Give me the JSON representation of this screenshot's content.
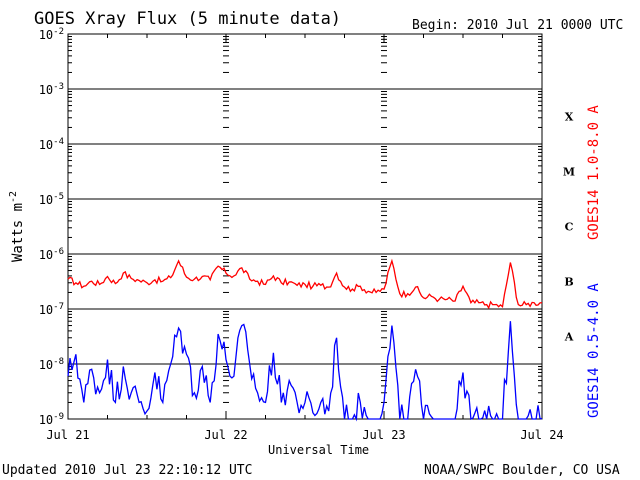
{
  "chart_data": {
    "type": "line",
    "title": "GOES Xray Flux (5 minute data)",
    "begin_label": "Begin:  2010 Jul 21 0000 UTC",
    "xlabel": "Universal Time",
    "ylabel": "Watts m",
    "ylabel_sup": "-2",
    "x_ticks": [
      "Jul 21",
      "Jul 22",
      "Jul 23",
      "Jul 24"
    ],
    "x_range_days": [
      0,
      3
    ],
    "y_scale": "log",
    "ylim": [
      1e-09,
      0.01
    ],
    "y_ticks": [
      {
        "base": "10",
        "exp": "-2"
      },
      {
        "base": "10",
        "exp": "-3"
      },
      {
        "base": "10",
        "exp": "-4"
      },
      {
        "base": "10",
        "exp": "-5"
      },
      {
        "base": "10",
        "exp": "-6"
      },
      {
        "base": "10",
        "exp": "-7"
      },
      {
        "base": "10",
        "exp": "-8"
      },
      {
        "base": "10",
        "exp": "-9"
      }
    ],
    "flare_classes": [
      "X",
      "M",
      "C",
      "B",
      "A"
    ],
    "grid": "horizontal at each decade",
    "series": [
      {
        "name": "GOES14 1.0-8.0 A",
        "color": "#ff0000",
        "x_days": [
          0.0,
          0.05,
          0.1,
          0.15,
          0.2,
          0.25,
          0.3,
          0.35,
          0.4,
          0.45,
          0.5,
          0.55,
          0.6,
          0.65,
          0.7,
          0.75,
          0.8,
          0.85,
          0.9,
          0.95,
          1.0,
          1.05,
          1.1,
          1.15,
          1.2,
          1.25,
          1.3,
          1.35,
          1.4,
          1.45,
          1.5,
          1.55,
          1.6,
          1.65,
          1.7,
          1.75,
          1.8,
          1.85,
          1.9,
          1.95,
          2.0,
          2.05,
          2.1,
          2.15,
          2.2,
          2.25,
          2.3,
          2.35,
          2.4,
          2.45,
          2.5,
          2.55,
          2.6,
          2.65,
          2.7,
          2.75,
          2.8,
          2.85,
          2.9,
          2.95,
          3.0
        ],
        "y": [
          3.5e-07,
          3e-07,
          2.6e-07,
          3.2e-07,
          2.8e-07,
          3.9e-07,
          2.9e-07,
          4.5e-07,
          3.6e-07,
          3.3e-07,
          3e-07,
          3.4e-07,
          3.2e-07,
          3.7e-07,
          7.5e-07,
          3.8e-07,
          3.5e-07,
          3.9e-07,
          3.4e-07,
          6e-07,
          4.5e-07,
          4e-07,
          5.6e-07,
          3.5e-07,
          3.2e-07,
          2.8e-07,
          4e-07,
          3e-07,
          3.1e-07,
          2.7e-07,
          2.8e-07,
          2.6e-07,
          2.7e-07,
          2.5e-07,
          4.5e-07,
          2.5e-07,
          2.3e-07,
          2.6e-07,
          2.1e-07,
          2e-07,
          2.3e-07,
          7.5e-07,
          1.9e-07,
          1.9e-07,
          2.5e-07,
          1.6e-07,
          1.7e-07,
          1.5e-07,
          1.5e-07,
          1.4e-07,
          2.6e-07,
          1.3e-07,
          1.3e-07,
          1.2e-07,
          1.2e-07,
          1.1e-07,
          7e-07,
          1.2e-07,
          1.2e-07,
          1.3e-07,
          1.3e-07
        ]
      },
      {
        "name": "GOES14 0.5-4.0 A",
        "color": "#0000ff",
        "x_days": [
          0.0,
          0.05,
          0.1,
          0.15,
          0.2,
          0.25,
          0.3,
          0.35,
          0.4,
          0.45,
          0.5,
          0.55,
          0.6,
          0.65,
          0.7,
          0.75,
          0.8,
          0.85,
          0.9,
          0.95,
          1.0,
          1.05,
          1.1,
          1.15,
          1.2,
          1.25,
          1.3,
          1.35,
          1.4,
          1.45,
          1.5,
          1.55,
          1.6,
          1.65,
          1.7,
          1.75,
          1.8,
          1.85,
          1.9,
          1.95,
          2.0,
          2.05,
          2.1,
          2.15,
          2.2,
          2.25,
          2.3,
          2.35,
          2.4,
          2.45,
          2.5,
          2.55,
          2.6,
          2.65,
          2.7,
          2.75,
          2.8,
          2.85,
          2.9,
          2.95,
          3.0
        ],
        "y": [
          6e-09,
          1.5e-08,
          2e-09,
          8e-09,
          3e-09,
          1.2e-08,
          2e-09,
          9e-09,
          3e-09,
          2e-09,
          1.4e-09,
          7e-09,
          2e-09,
          1e-08,
          4.5e-08,
          1.5e-08,
          3e-09,
          9e-09,
          2e-09,
          3.5e-08,
          1.2e-08,
          6e-09,
          5e-08,
          1e-08,
          3e-09,
          2e-09,
          1.6e-08,
          2e-09,
          5e-09,
          2e-09,
          2e-09,
          1.3e-09,
          2e-09,
          1.4e-09,
          3e-08,
          1e-09,
          1e-09,
          2e-09,
          1e-09,
          1e-09,
          2e-09,
          5e-08,
          1e-09,
          1e-09,
          8e-09,
          1e-09,
          1.1e-09,
          1e-09,
          1e-09,
          1e-09,
          7e-09,
          1e-09,
          1e-09,
          1e-09,
          1e-09,
          1e-09,
          6e-08,
          1e-09,
          1e-09,
          1e-09,
          1e-09
        ]
      }
    ]
  },
  "footer": {
    "updated": "Updated 2010 Jul 23 22:10:12 UTC",
    "source": "NOAA/SWPC Boulder, CO USA"
  }
}
